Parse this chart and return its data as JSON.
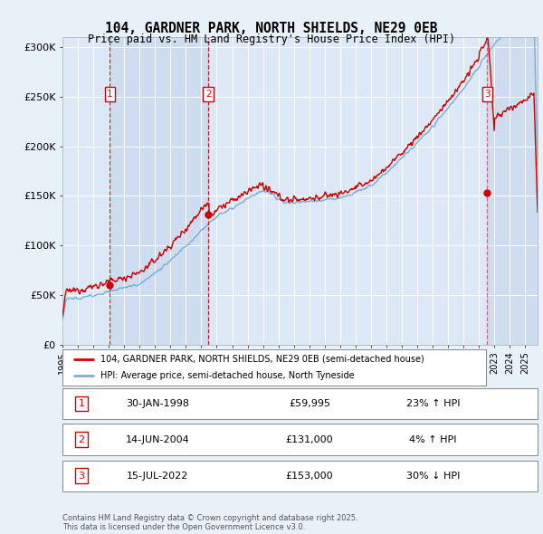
{
  "title": "104, GARDNER PARK, NORTH SHIELDS, NE29 0EB",
  "subtitle": "Price paid vs. HM Land Registry's House Price Index (HPI)",
  "background_color": "#e8f0f8",
  "plot_bg_color": "#dce8f5",
  "sale_dates": [
    1998.08,
    2004.46,
    2022.54
  ],
  "sale_prices": [
    59995,
    131000,
    153000
  ],
  "sale_labels": [
    "1",
    "2",
    "3"
  ],
  "ylim": [
    0,
    310000
  ],
  "xlim_start": 1995.0,
  "xlim_end": 2025.8,
  "yticks": [
    0,
    50000,
    100000,
    150000,
    200000,
    250000,
    300000
  ],
  "ytick_labels": [
    "£0",
    "£50K",
    "£100K",
    "£150K",
    "£200K",
    "£250K",
    "£300K"
  ],
  "legend_line1": "104, GARDNER PARK, NORTH SHIELDS, NE29 0EB (semi-detached house)",
  "legend_line2": "HPI: Average price, semi-detached house, North Tyneside",
  "table": [
    [
      "1",
      "30-JAN-1998",
      "£59,995",
      "23% ↑ HPI"
    ],
    [
      "2",
      "14-JUN-2004",
      "£131,000",
      "4% ↑ HPI"
    ],
    [
      "3",
      "15-JUL-2022",
      "£153,000",
      "30% ↓ HPI"
    ]
  ],
  "footer": "Contains HM Land Registry data © Crown copyright and database right 2025.\nThis data is licensed under the Open Government Licence v3.0.",
  "red_color": "#cc0000",
  "blue_color": "#7bafd4",
  "shade_color": "#c8d8ec"
}
